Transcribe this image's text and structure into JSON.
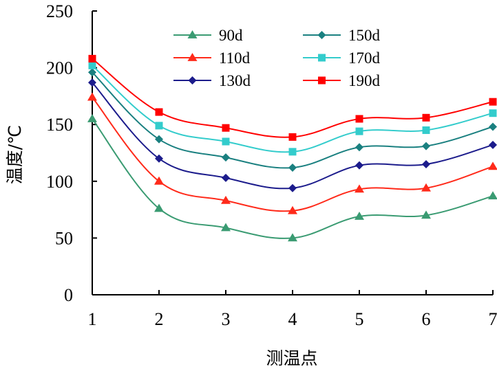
{
  "chart_data": {
    "type": "line",
    "title": "",
    "xlabel": "测温点",
    "ylabel": "温度/℃",
    "x": [
      1,
      2,
      3,
      4,
      5,
      6,
      7
    ],
    "x_tick_labels": [
      "1",
      "2",
      "3",
      "4",
      "5",
      "6",
      "7"
    ],
    "y_tick_labels": [
      "0",
      "50",
      "100",
      "150",
      "200",
      "250"
    ],
    "y_ticks": [
      0,
      50,
      100,
      150,
      200,
      250
    ],
    "xlim": [
      1,
      7
    ],
    "ylim": [
      0,
      250
    ],
    "grid": false,
    "legend_position": "top",
    "series": [
      {
        "name": "90d",
        "values": [
          155,
          76,
          59,
          50,
          69,
          70,
          87
        ],
        "color": "#3a9b72",
        "marker": "triangle"
      },
      {
        "name": "110d",
        "values": [
          174,
          100,
          83,
          74,
          93,
          94,
          113
        ],
        "color": "#ff2a1a",
        "marker": "triangle"
      },
      {
        "name": "130d",
        "values": [
          187,
          120,
          103,
          94,
          114,
          115,
          132
        ],
        "color": "#1c1c8c",
        "marker": "diamond"
      },
      {
        "name": "150d",
        "values": [
          196,
          137,
          121,
          112,
          130,
          131,
          148
        ],
        "color": "#1a8080",
        "marker": "diamond"
      },
      {
        "name": "170d",
        "values": [
          202,
          149,
          135,
          126,
          144,
          145,
          160
        ],
        "color": "#33cccc",
        "marker": "square"
      },
      {
        "name": "190d",
        "values": [
          208,
          161,
          147,
          139,
          155,
          156,
          170
        ],
        "color": "#ff0000",
        "marker": "square"
      }
    ]
  }
}
